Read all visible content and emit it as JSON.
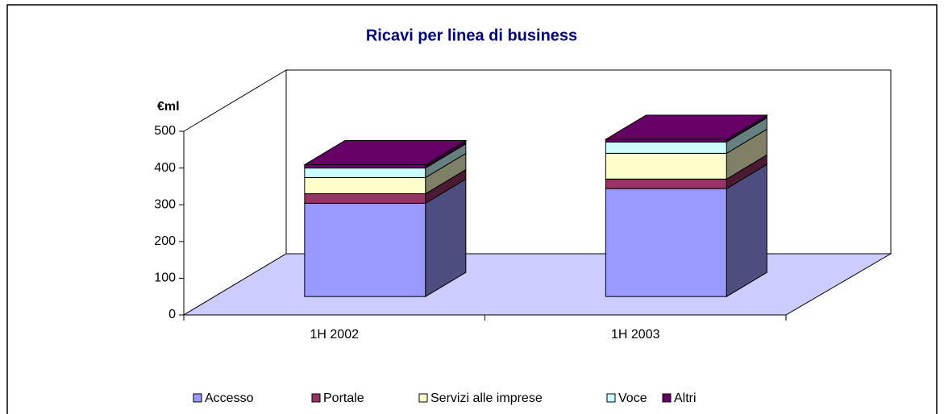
{
  "chart_data": {
    "type": "bar3d_stacked",
    "title": "Ricavi per linea di business",
    "y_label": "€ml",
    "categories": [
      "1H 2002",
      "1H 2003"
    ],
    "series": [
      {
        "name": "Accesso",
        "color": "#9999ff",
        "values": [
          254,
          294
        ]
      },
      {
        "name": "Portale",
        "color": "#993366",
        "values": [
          26,
          26
        ]
      },
      {
        "name": "Servizi alle imprese",
        "color": "#ffffcc",
        "values": [
          44,
          70
        ]
      },
      {
        "name": "Voce",
        "color": "#ccffff",
        "values": [
          26,
          31
        ]
      },
      {
        "name": "Altri",
        "color": "#660066",
        "values": [
          9,
          7
        ]
      }
    ],
    "ylim": [
      0,
      500
    ],
    "yticks": [
      0,
      100,
      200,
      300,
      400,
      500
    ],
    "legend": "bottom"
  }
}
